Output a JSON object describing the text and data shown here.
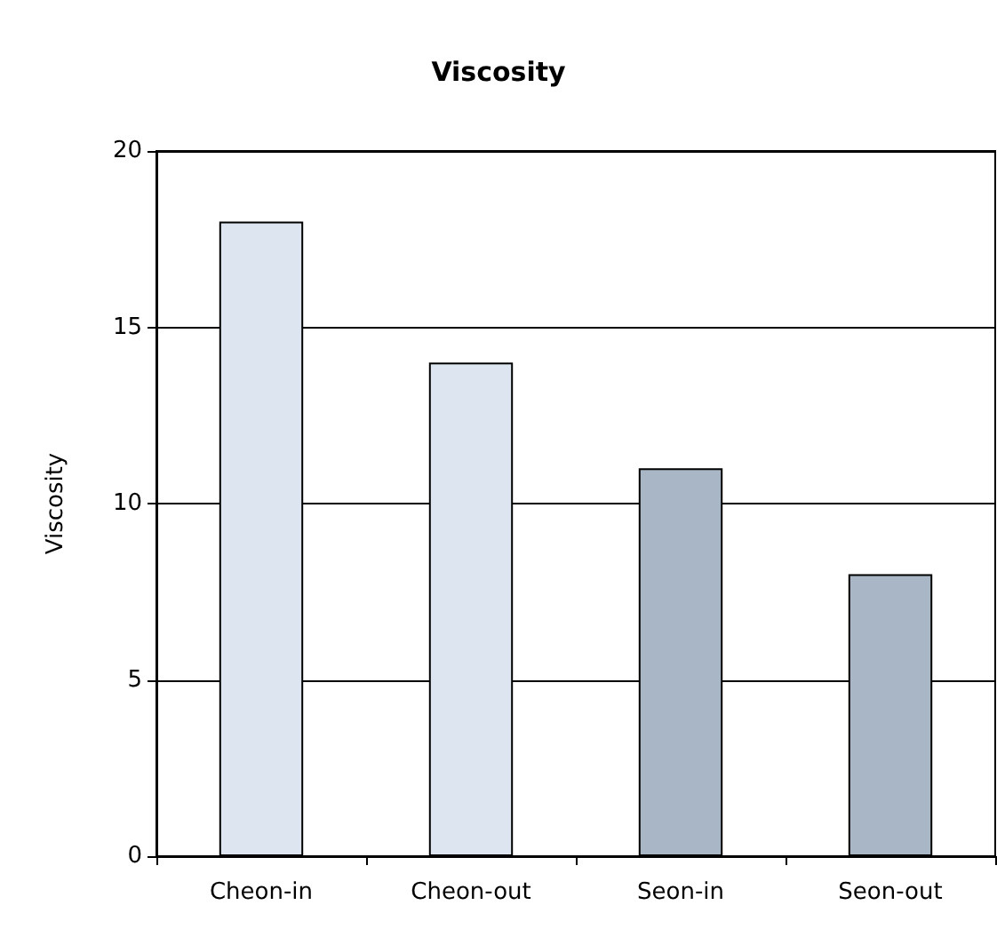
{
  "chart_data": {
    "type": "bar",
    "title": "Viscosity",
    "ylabel": "Viscosity",
    "categories": [
      "Cheon-in",
      "Cheon-out",
      "Seon-in",
      "Seon-out"
    ],
    "values": [
      18,
      14,
      11,
      8
    ],
    "colors": [
      "#dde6f0",
      "#dde6f0",
      "#a9b6c6",
      "#a9b6c6"
    ],
    "ylim": [
      0,
      20
    ],
    "yticks": [
      0,
      5,
      10,
      15,
      20
    ],
    "grid": "y"
  }
}
